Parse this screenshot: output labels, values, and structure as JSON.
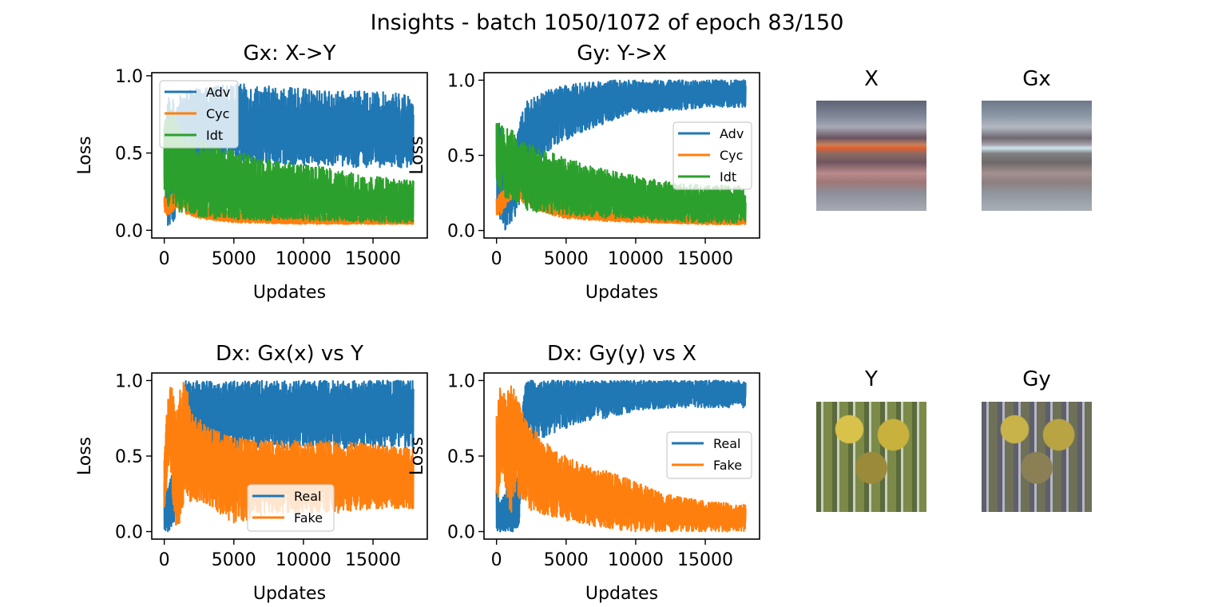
{
  "suptitle": "Insights - batch 1050/1072 of epoch 83/150",
  "colors": {
    "blue": "#1f77b4",
    "orange": "#ff7f0e",
    "green": "#2ca02c"
  },
  "images": [
    {
      "title": "X"
    },
    {
      "title": "Gx"
    },
    {
      "title": "Y"
    },
    {
      "title": "Gy"
    }
  ],
  "chart_data": [
    {
      "type": "line",
      "title": "Gx: X->Y",
      "xlabel": "Updates",
      "ylabel": "Loss",
      "xlim": [
        -900,
        18900
      ],
      "ylim": [
        -0.05,
        1.02
      ],
      "xticks": [
        0,
        5000,
        10000,
        15000
      ],
      "xtick_labels": [
        "0",
        "5000",
        "10000",
        "15000"
      ],
      "yticks": [
        0.0,
        0.5,
        1.0
      ],
      "ytick_labels": [
        "0.0",
        "0.5",
        "1.0"
      ],
      "legend_position": "upper-left",
      "series": [
        {
          "name": "Adv",
          "color": "#1f77b4",
          "x": [
            0,
            300,
            600,
            900,
            1500,
            2500,
            5000,
            8000,
            12000,
            15000,
            18000
          ],
          "min": [
            0.15,
            0.0,
            0.05,
            0.1,
            0.45,
            0.4,
            0.45,
            0.42,
            0.42,
            0.4,
            0.4
          ],
          "max": [
            0.7,
            0.9,
            0.85,
            0.85,
            0.9,
            0.92,
            0.95,
            0.93,
            0.9,
            0.9,
            0.88
          ],
          "mean": [
            0.45,
            0.35,
            0.5,
            0.55,
            0.65,
            0.65,
            0.66,
            0.64,
            0.64,
            0.63,
            0.62
          ]
        },
        {
          "name": "Cyc",
          "color": "#ff7f0e",
          "x": [
            0,
            300,
            600,
            900,
            1200,
            1500,
            2000,
            3000,
            5000,
            10000,
            15000,
            18000
          ],
          "min": [
            0.1,
            0.1,
            0.12,
            0.15,
            0.13,
            0.1,
            0.09,
            0.07,
            0.05,
            0.04,
            0.04,
            0.04
          ],
          "max": [
            0.22,
            0.2,
            0.25,
            0.3,
            0.28,
            0.22,
            0.18,
            0.15,
            0.12,
            0.1,
            0.09,
            0.09
          ],
          "mean": [
            0.16,
            0.15,
            0.18,
            0.22,
            0.2,
            0.16,
            0.13,
            0.1,
            0.08,
            0.065,
            0.06,
            0.06
          ]
        },
        {
          "name": "Idt",
          "color": "#2ca02c",
          "x": [
            0,
            300,
            600,
            1000,
            2000,
            3000,
            5000,
            8000,
            12000,
            15000,
            18000
          ],
          "min": [
            0.25,
            0.15,
            0.18,
            0.12,
            0.1,
            0.08,
            0.07,
            0.06,
            0.06,
            0.05,
            0.05
          ],
          "max": [
            0.7,
            0.75,
            0.8,
            0.7,
            0.62,
            0.58,
            0.52,
            0.45,
            0.4,
            0.35,
            0.32
          ],
          "mean": [
            0.45,
            0.4,
            0.42,
            0.35,
            0.3,
            0.26,
            0.22,
            0.2,
            0.18,
            0.16,
            0.15
          ]
        }
      ]
    },
    {
      "type": "line",
      "title": "Gy: Y->X",
      "xlabel": "Updates",
      "ylabel": "Loss",
      "xlim": [
        -900,
        18900
      ],
      "ylim": [
        -0.05,
        1.05
      ],
      "xticks": [
        0,
        5000,
        10000,
        15000
      ],
      "xtick_labels": [
        "0",
        "5000",
        "10000",
        "15000"
      ],
      "yticks": [
        0.0,
        0.5,
        1.0
      ],
      "ytick_labels": [
        "0.0",
        "0.5",
        "1.0"
      ],
      "legend_position": "center-right",
      "series": [
        {
          "name": "Adv",
          "color": "#1f77b4",
          "x": [
            0,
            300,
            600,
            1000,
            1500,
            2000,
            3000,
            4000,
            6000,
            8000,
            10000,
            13000,
            15000,
            18000
          ],
          "min": [
            0.2,
            0.05,
            0.0,
            0.05,
            0.1,
            0.3,
            0.45,
            0.55,
            0.65,
            0.72,
            0.78,
            0.8,
            0.82,
            0.82
          ],
          "max": [
            0.75,
            0.72,
            0.6,
            0.55,
            0.65,
            0.85,
            0.9,
            0.95,
            0.98,
            1.0,
            1.0,
            1.0,
            1.0,
            1.0
          ],
          "mean": [
            0.45,
            0.35,
            0.25,
            0.3,
            0.4,
            0.6,
            0.68,
            0.75,
            0.82,
            0.86,
            0.89,
            0.9,
            0.91,
            0.91
          ]
        },
        {
          "name": "Cyc",
          "color": "#ff7f0e",
          "x": [
            0,
            300,
            600,
            1000,
            1300,
            1800,
            2500,
            3500,
            5000,
            8000,
            12000,
            15000,
            18000
          ],
          "min": [
            0.1,
            0.1,
            0.15,
            0.2,
            0.22,
            0.18,
            0.15,
            0.11,
            0.08,
            0.06,
            0.05,
            0.04,
            0.04
          ],
          "max": [
            0.22,
            0.25,
            0.32,
            0.4,
            0.43,
            0.38,
            0.3,
            0.24,
            0.18,
            0.13,
            0.1,
            0.09,
            0.09
          ],
          "mean": [
            0.16,
            0.17,
            0.23,
            0.3,
            0.32,
            0.28,
            0.22,
            0.17,
            0.13,
            0.09,
            0.07,
            0.06,
            0.06
          ]
        },
        {
          "name": "Idt",
          "color": "#2ca02c",
          "x": [
            0,
            300,
            600,
            1000,
            2000,
            3000,
            5000,
            8000,
            12000,
            15000,
            18000
          ],
          "min": [
            0.3,
            0.25,
            0.22,
            0.18,
            0.14,
            0.12,
            0.1,
            0.08,
            0.06,
            0.05,
            0.05
          ],
          "max": [
            0.75,
            0.72,
            0.7,
            0.68,
            0.6,
            0.55,
            0.48,
            0.4,
            0.33,
            0.3,
            0.3
          ],
          "mean": [
            0.5,
            0.46,
            0.44,
            0.42,
            0.36,
            0.32,
            0.27,
            0.22,
            0.18,
            0.16,
            0.15
          ]
        }
      ]
    },
    {
      "type": "line",
      "title": "Dx: Gx(x) vs Y",
      "xlabel": "Updates",
      "ylabel": "Loss",
      "xlim": [
        -900,
        18900
      ],
      "ylim": [
        -0.05,
        1.05
      ],
      "xticks": [
        0,
        5000,
        10000,
        15000
      ],
      "xtick_labels": [
        "0",
        "5000",
        "10000",
        "15000"
      ],
      "yticks": [
        0.0,
        0.5,
        1.0
      ],
      "ytick_labels": [
        "0.0",
        "0.5",
        "1.0"
      ],
      "legend_position": "lower-center",
      "series": [
        {
          "name": "Real",
          "color": "#1f77b4",
          "x": [
            0,
            300,
            600,
            900,
            1200,
            1500,
            2000,
            3000,
            5000,
            8000,
            12000,
            15000,
            18000
          ],
          "min": [
            0.0,
            0.0,
            0.05,
            0.1,
            0.15,
            0.5,
            0.45,
            0.5,
            0.55,
            0.55,
            0.55,
            0.55,
            0.55
          ],
          "max": [
            0.35,
            0.3,
            0.4,
            0.6,
            0.8,
            1.0,
            1.0,
            1.0,
            1.0,
            1.0,
            1.0,
            1.0,
            1.0
          ],
          "mean": [
            0.15,
            0.12,
            0.2,
            0.35,
            0.55,
            0.78,
            0.78,
            0.8,
            0.82,
            0.82,
            0.82,
            0.82,
            0.82
          ]
        },
        {
          "name": "Fake",
          "color": "#ff7f0e",
          "x": [
            0,
            200,
            400,
            600,
            800,
            1000,
            1300,
            1600,
            2000,
            3000,
            5000,
            8000,
            12000,
            15000,
            18000
          ],
          "min": [
            0.1,
            0.3,
            0.5,
            0.2,
            0.05,
            0.0,
            0.15,
            0.2,
            0.2,
            0.18,
            0.05,
            0.12,
            0.12,
            0.15,
            0.15
          ],
          "max": [
            0.5,
            0.85,
            0.98,
            0.95,
            0.85,
            0.9,
            1.0,
            0.95,
            0.8,
            0.7,
            0.62,
            0.6,
            0.6,
            0.58,
            0.55
          ],
          "mean": [
            0.3,
            0.6,
            0.8,
            0.6,
            0.45,
            0.4,
            0.55,
            0.55,
            0.48,
            0.42,
            0.4,
            0.4,
            0.4,
            0.38,
            0.36
          ]
        }
      ]
    },
    {
      "type": "line",
      "title": "Dx: Gy(y) vs X",
      "xlabel": "Updates",
      "ylabel": "Loss",
      "xlim": [
        -900,
        18900
      ],
      "ylim": [
        -0.05,
        1.05
      ],
      "xticks": [
        0,
        5000,
        10000,
        15000
      ],
      "xtick_labels": [
        "0",
        "5000",
        "10000",
        "15000"
      ],
      "yticks": [
        0.0,
        0.5,
        1.0
      ],
      "ytick_labels": [
        "0.0",
        "0.5",
        "1.0"
      ],
      "legend_position": "center-right",
      "series": [
        {
          "name": "Real",
          "color": "#1f77b4",
          "x": [
            0,
            300,
            600,
            900,
            1200,
            1600,
            2000,
            2500,
            3000,
            4000,
            6000,
            8000,
            10000,
            13000,
            15000,
            18000
          ],
          "min": [
            0.0,
            0.0,
            0.0,
            0.0,
            0.0,
            0.02,
            0.65,
            0.62,
            0.6,
            0.65,
            0.72,
            0.75,
            0.8,
            0.82,
            0.82,
            0.82
          ],
          "max": [
            0.3,
            0.2,
            0.25,
            0.35,
            0.4,
            0.4,
            1.0,
            1.0,
            1.0,
            1.0,
            1.0,
            1.0,
            1.0,
            1.0,
            1.0,
            1.0
          ],
          "mean": [
            0.1,
            0.05,
            0.08,
            0.1,
            0.12,
            0.15,
            0.85,
            0.85,
            0.86,
            0.88,
            0.9,
            0.91,
            0.92,
            0.93,
            0.93,
            0.93
          ]
        },
        {
          "name": "Fake",
          "color": "#ff7f0e",
          "x": [
            0,
            200,
            400,
            600,
            800,
            1000,
            1300,
            1600,
            2000,
            3000,
            4000,
            6000,
            8000,
            10000,
            12000,
            15000,
            18000
          ],
          "min": [
            0.1,
            0.3,
            0.4,
            0.3,
            0.2,
            0.1,
            0.25,
            0.2,
            0.15,
            0.12,
            0.1,
            0.05,
            0.02,
            0.0,
            0.0,
            0.0,
            0.0
          ],
          "max": [
            0.8,
            0.95,
            0.95,
            0.9,
            0.95,
            1.0,
            1.0,
            0.9,
            0.75,
            0.65,
            0.55,
            0.45,
            0.4,
            0.33,
            0.25,
            0.2,
            0.18
          ],
          "mean": [
            0.45,
            0.7,
            0.7,
            0.6,
            0.55,
            0.5,
            0.65,
            0.58,
            0.48,
            0.4,
            0.32,
            0.26,
            0.22,
            0.18,
            0.14,
            0.11,
            0.1
          ]
        }
      ]
    }
  ]
}
